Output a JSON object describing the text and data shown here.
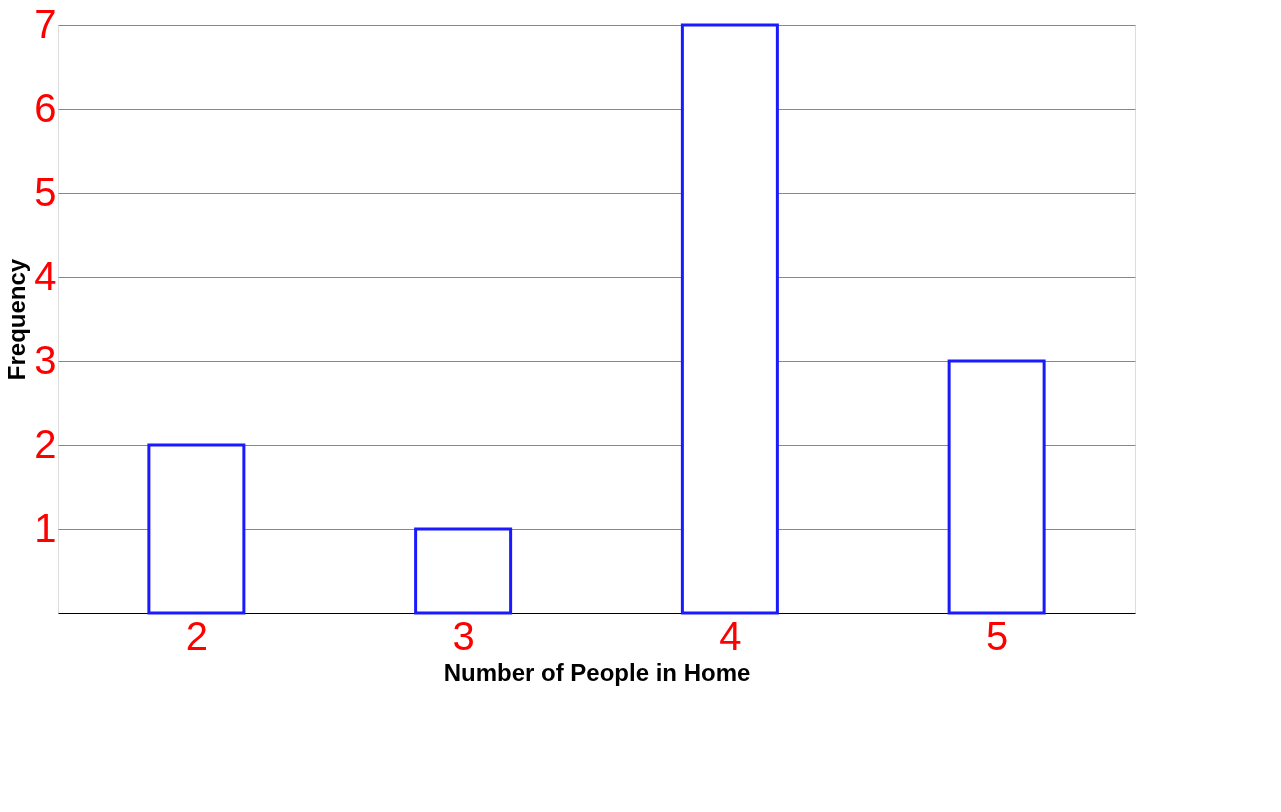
{
  "chart_data": {
    "type": "bar",
    "xlabel": "Number of People in Home",
    "ylabel": "Frequency",
    "categories": [
      "2",
      "3",
      "4",
      "5"
    ],
    "values": [
      2,
      1,
      7,
      3
    ],
    "color": "#1a1aff",
    "ylim": [
      0,
      7
    ],
    "yticks": [
      1,
      2,
      3,
      4,
      5,
      6,
      7
    ],
    "grid": "y"
  }
}
